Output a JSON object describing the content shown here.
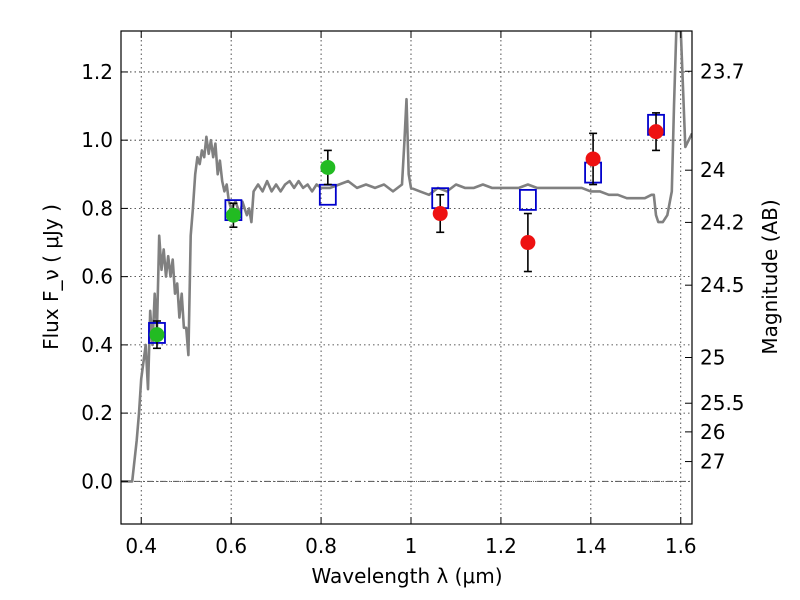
{
  "chart_data": {
    "type": "scatter",
    "title": "",
    "xlabel": "Wavelength  λ (μm)",
    "ylabel": "Flux  F_ν  ( μJy )",
    "y2label": "Magnitude (AB)",
    "xlim": [
      0.355,
      1.625
    ],
    "ylim": [
      -0.125,
      1.32
    ],
    "x_ticks": [
      0.4,
      0.6,
      0.8,
      1.0,
      1.2,
      1.4,
      1.6
    ],
    "x_tick_labels": [
      "0.4",
      "0.6",
      "0.8",
      "1",
      "1.2",
      "1.4",
      "1.6"
    ],
    "y_ticks": [
      0.0,
      0.2,
      0.4,
      0.6,
      0.8,
      1.0,
      1.2
    ],
    "y_tick_labels": [
      "0.0",
      "0.2",
      "0.4",
      "0.6",
      "0.8",
      "1.0",
      "1.2"
    ],
    "grid": true,
    "y2_ticks": [
      {
        "label": "23.7",
        "flux": 1.202
      },
      {
        "label": "24",
        "flux": 0.912
      },
      {
        "label": "24.2",
        "flux": 0.759
      },
      {
        "label": "24.5",
        "flux": 0.575
      },
      {
        "label": "25",
        "flux": 0.363
      },
      {
        "label": "25.5",
        "flux": 0.229
      },
      {
        "label": "26",
        "flux": 0.145
      },
      {
        "label": "27",
        "flux": 0.058
      }
    ],
    "model_spectrum": {
      "color": "#808080",
      "x": [
        0.355,
        0.38,
        0.39,
        0.395,
        0.4,
        0.41,
        0.415,
        0.42,
        0.425,
        0.43,
        0.435,
        0.44,
        0.445,
        0.45,
        0.455,
        0.46,
        0.465,
        0.47,
        0.475,
        0.48,
        0.485,
        0.49,
        0.495,
        0.5,
        0.505,
        0.51,
        0.515,
        0.52,
        0.525,
        0.53,
        0.535,
        0.54,
        0.545,
        0.55,
        0.555,
        0.56,
        0.565,
        0.57,
        0.575,
        0.58,
        0.585,
        0.59,
        0.595,
        0.6,
        0.61,
        0.615,
        0.62,
        0.625,
        0.63,
        0.635,
        0.64,
        0.645,
        0.65,
        0.66,
        0.67,
        0.68,
        0.69,
        0.7,
        0.71,
        0.72,
        0.73,
        0.74,
        0.75,
        0.76,
        0.77,
        0.78,
        0.79,
        0.8,
        0.82,
        0.84,
        0.86,
        0.88,
        0.9,
        0.92,
        0.94,
        0.96,
        0.98,
        0.985,
        0.99,
        0.995,
        1.0,
        1.02,
        1.04,
        1.06,
        1.08,
        1.1,
        1.12,
        1.14,
        1.16,
        1.18,
        1.2,
        1.22,
        1.24,
        1.26,
        1.28,
        1.3,
        1.32,
        1.34,
        1.36,
        1.38,
        1.4,
        1.42,
        1.44,
        1.46,
        1.48,
        1.5,
        1.52,
        1.535,
        1.54,
        1.545,
        1.55,
        1.56,
        1.57,
        1.58,
        1.585,
        1.59,
        1.6,
        1.61,
        1.625
      ],
      "y": [
        0.0,
        0.0,
        0.12,
        0.2,
        0.3,
        0.4,
        0.27,
        0.5,
        0.4,
        0.55,
        0.45,
        0.72,
        0.62,
        0.68,
        0.6,
        0.66,
        0.6,
        0.65,
        0.55,
        0.58,
        0.48,
        0.55,
        0.45,
        0.45,
        0.37,
        0.72,
        0.8,
        0.9,
        0.95,
        0.93,
        0.97,
        0.95,
        1.01,
        0.96,
        1.0,
        0.95,
        0.99,
        0.9,
        0.94,
        0.88,
        0.85,
        0.87,
        0.82,
        0.8,
        0.82,
        0.8,
        0.78,
        0.82,
        0.8,
        0.78,
        0.8,
        0.76,
        0.85,
        0.87,
        0.85,
        0.88,
        0.85,
        0.87,
        0.85,
        0.87,
        0.88,
        0.86,
        0.88,
        0.86,
        0.87,
        0.85,
        0.87,
        0.86,
        0.86,
        0.87,
        0.88,
        0.86,
        0.87,
        0.86,
        0.87,
        0.85,
        0.87,
        0.99,
        1.12,
        0.9,
        0.86,
        0.85,
        0.84,
        0.86,
        0.85,
        0.87,
        0.86,
        0.86,
        0.87,
        0.86,
        0.86,
        0.86,
        0.86,
        0.87,
        0.86,
        0.86,
        0.86,
        0.86,
        0.86,
        0.86,
        0.85,
        0.85,
        0.84,
        0.84,
        0.83,
        0.83,
        0.83,
        0.84,
        0.84,
        0.78,
        0.76,
        0.76,
        0.78,
        0.85,
        1.1,
        1.32,
        1.32,
        0.98,
        1.02
      ]
    },
    "series": [
      {
        "marker": "open-square",
        "color": "#0000cc",
        "points": [
          {
            "x": 0.435,
            "y": 0.435
          },
          {
            "x": 0.605,
            "y": 0.795
          },
          {
            "x": 0.815,
            "y": 0.84
          },
          {
            "x": 1.065,
            "y": 0.83
          },
          {
            "x": 1.26,
            "y": 0.825
          },
          {
            "x": 1.405,
            "y": 0.905
          },
          {
            "x": 1.545,
            "y": 1.045
          }
        ]
      },
      {
        "marker": "filled-circle",
        "color": "#22bb22",
        "points": [
          {
            "x": 0.435,
            "y": 0.43,
            "err": 0.04
          },
          {
            "x": 0.605,
            "y": 0.78,
            "err": 0.035
          },
          {
            "x": 0.815,
            "y": 0.92,
            "err": 0.05
          }
        ]
      },
      {
        "marker": "filled-circle",
        "color": "#ee1111",
        "points": [
          {
            "x": 1.065,
            "y": 0.785,
            "err": 0.055
          },
          {
            "x": 1.26,
            "y": 0.7,
            "err": 0.085
          },
          {
            "x": 1.405,
            "y": 0.945,
            "err": 0.075
          },
          {
            "x": 1.545,
            "y": 1.025,
            "err": 0.055
          }
        ]
      }
    ]
  }
}
